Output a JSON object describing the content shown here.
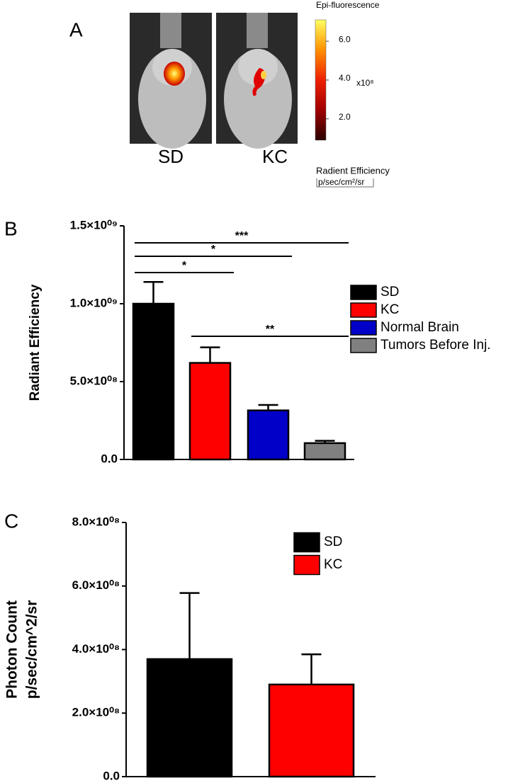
{
  "panel_a": {
    "label": "A",
    "images": [
      "SD",
      "KC"
    ],
    "colorbar": {
      "title": "Epi-fluorescence",
      "lim": [
        0.9,
        7.1
      ],
      "ticks": [
        {
          "value": 2,
          "label": "2.0"
        },
        {
          "value": 4,
          "label": "4.0"
        },
        {
          "value": 6,
          "label": "6.0"
        }
      ],
      "multiplier": "x10⁸",
      "unit_title": "Radient Efficiency",
      "unit": "p/sec/cm²/sr",
      "colors": [
        "#2a0000",
        "#a00000",
        "#ee2000",
        "#ff9000",
        "#ffff60"
      ]
    }
  },
  "chart_data": [
    {
      "type": "bar",
      "panel_label": "B",
      "ylabel": "Radiant  Efficiency",
      "categories": [
        "SD",
        "KC",
        "Normal Brain",
        "Tumors Before Inj."
      ],
      "colors": [
        "#000000",
        "#ff0000",
        "#0000c8",
        "#808080"
      ],
      "values": [
        1000000000,
        620000000,
        315000000,
        105000000
      ],
      "errors": [
        140000000,
        100000000,
        35000000,
        15000000
      ],
      "ylim": [
        0,
        1500000000
      ],
      "yticks": [
        {
          "value": 0,
          "label": "0.0"
        },
        {
          "value": 500000000,
          "label": "5.0×10⁰⁸"
        },
        {
          "value": 1000000000,
          "label": "1.0×10⁰⁹"
        },
        {
          "value": 1500000000,
          "label": "1.5×10⁰⁹"
        }
      ],
      "legend": "right",
      "annotations": [
        {
          "label": "***",
          "groups": [
            0,
            3
          ]
        },
        {
          "label": "*",
          "groups": [
            0,
            2
          ]
        },
        {
          "label": "*",
          "groups": [
            0,
            1
          ]
        },
        {
          "label": "**",
          "groups": [
            1,
            3
          ]
        }
      ]
    },
    {
      "type": "bar",
      "panel_label": "C",
      "ylabel": [
        "Photon Count",
        "p/sec/cm^2/sr"
      ],
      "categories": [
        "SD",
        "KC"
      ],
      "colors": [
        "#000000",
        "#ff0000"
      ],
      "values": [
        370000000,
        290000000
      ],
      "errors": [
        208000000,
        95000000
      ],
      "ylim": [
        0,
        800000000
      ],
      "yticks": [
        {
          "value": 0,
          "label": "0.0"
        },
        {
          "value": 200000000,
          "label": "2.0×10⁰⁸"
        },
        {
          "value": 400000000,
          "label": "4.0×10⁰⁸"
        },
        {
          "value": 600000000,
          "label": "6.0×10⁰⁸"
        },
        {
          "value": 800000000,
          "label": "8.0×10⁰⁸"
        }
      ],
      "legend": "upper right"
    }
  ]
}
